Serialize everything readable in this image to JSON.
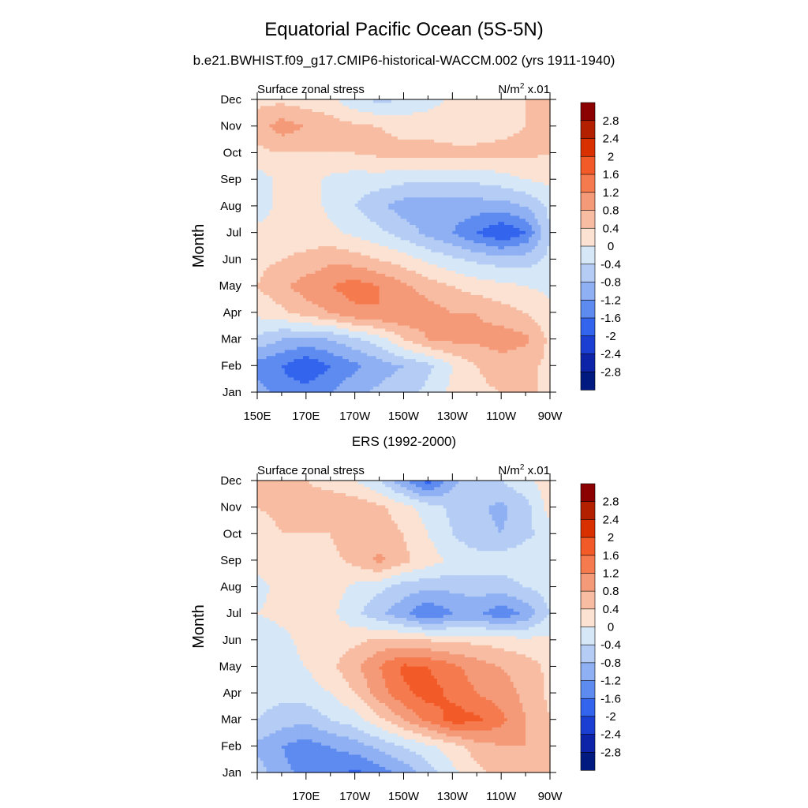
{
  "figure": {
    "title": "Equatorial Pacific Ocean (5S-5N)"
  },
  "colorbar": {
    "levels": [
      "2.8",
      "2.4",
      "2",
      "1.6",
      "1.2",
      "0.8",
      "0.4",
      "0",
      "-0.4",
      "-0.8",
      "-1.2",
      "-1.6",
      "-2",
      "-2.4",
      "-2.8"
    ],
    "colors": [
      "#8b0000",
      "#b22000",
      "#d93000",
      "#f25a28",
      "#f57a4e",
      "#f59a78",
      "#f7bca2",
      "#fbe2d2",
      "#d6e8f8",
      "#b5cdf5",
      "#8fb0f3",
      "#5e8bf0",
      "#3264ee",
      "#1a3fd2",
      "#0d24a8",
      "#001a80"
    ]
  },
  "chart_data": [
    {
      "type": "heatmap",
      "title": "b.e21.BWHIST.f09_g17.CMIP6-historical-WACCM.002 (yrs 1911-1940)",
      "left_label": "Surface zonal stress",
      "right_label_base": "N/m",
      "right_label_sup": "2",
      "right_label_tail": " x.01",
      "ylabel": "Month",
      "x_ticks": [
        "150E",
        "170E",
        "170W",
        "150W",
        "130W",
        "110W",
        "90W"
      ],
      "y_ticks": [
        "Jan",
        "Feb",
        "Mar",
        "Apr",
        "May",
        "Jun",
        "Jul",
        "Aug",
        "Sep",
        "Oct",
        "Nov",
        "Dec"
      ],
      "x_range": [
        "150E",
        "90W"
      ],
      "y_range": [
        "Jan",
        "Dec"
      ],
      "levels": [
        -2.8,
        -2.4,
        -2.0,
        -1.6,
        -1.2,
        -0.8,
        -0.4,
        0,
        0.4,
        0.8,
        1.2,
        1.6,
        2.0,
        2.4,
        2.8
      ],
      "grid_lon": [
        "150E",
        "160E",
        "170E",
        "180",
        "170W",
        "160W",
        "150W",
        "140W",
        "130W",
        "120W",
        "110W",
        "100W",
        "90W"
      ],
      "grid_month": [
        "Jan",
        "Feb",
        "Mar",
        "Apr",
        "May",
        "Jun",
        "Jul",
        "Aug",
        "Sep",
        "Oct",
        "Nov",
        "Dec"
      ],
      "values": [
        [
          -1.0,
          -1.4,
          -1.4,
          -1.2,
          -0.9,
          -0.7,
          -0.5,
          -0.3,
          0.1,
          0.3,
          0.4,
          0.5,
          0.3
        ],
        [
          -1.4,
          -1.6,
          -2.0,
          -1.6,
          -1.3,
          -1.0,
          -0.8,
          -0.5,
          0.0,
          0.4,
          0.6,
          0.5,
          0.3
        ],
        [
          -0.5,
          -0.8,
          -0.9,
          -0.8,
          -0.5,
          -0.2,
          0.4,
          0.8,
          0.9,
          0.9,
          1.0,
          0.9,
          0.3
        ],
        [
          0.1,
          0.3,
          0.6,
          0.8,
          1.1,
          1.2,
          1.2,
          1.0,
          0.8,
          0.8,
          0.6,
          0.4,
          0.1
        ],
        [
          0.4,
          0.7,
          1.0,
          1.2,
          1.4,
          1.2,
          0.9,
          0.6,
          0.4,
          0.2,
          0.1,
          0.0,
          -0.1
        ],
        [
          0.3,
          0.4,
          0.5,
          0.7,
          0.6,
          0.4,
          0.2,
          -0.1,
          -0.3,
          -0.5,
          -0.6,
          -0.6,
          -0.3
        ],
        [
          0.1,
          0.2,
          0.2,
          0.1,
          -0.1,
          -0.3,
          -0.6,
          -0.9,
          -1.2,
          -1.6,
          -2.0,
          -1.6,
          -0.4
        ],
        [
          -0.2,
          0.1,
          0.2,
          -0.1,
          -0.4,
          -0.7,
          -1.0,
          -1.0,
          -1.0,
          -1.0,
          -1.0,
          -0.8,
          -0.3
        ],
        [
          -0.2,
          0.1,
          0.2,
          -0.1,
          -0.2,
          -0.2,
          -0.3,
          -0.3,
          -0.3,
          -0.3,
          -0.2,
          0.0,
          0.1
        ],
        [
          0.3,
          0.4,
          0.4,
          0.4,
          0.4,
          0.5,
          0.5,
          0.5,
          0.5,
          0.5,
          0.5,
          0.5,
          0.4
        ],
        [
          0.6,
          1.0,
          0.8,
          0.6,
          0.5,
          0.4,
          0.3,
          0.3,
          0.2,
          0.2,
          0.3,
          0.4,
          0.5
        ],
        [
          0.3,
          0.3,
          0.2,
          0.1,
          -0.3,
          -0.5,
          -0.4,
          -0.2,
          0.1,
          0.2,
          0.3,
          0.4,
          0.4
        ]
      ]
    },
    {
      "type": "heatmap",
      "title": "ERS (1992-2000)",
      "left_label": "Surface zonal stress",
      "right_label_base": "N/m",
      "right_label_sup": "2",
      "right_label_tail": " x.01",
      "ylabel": "Month",
      "x_ticks": [
        "170E",
        "170W",
        "150W",
        "130W",
        "110W",
        "90W"
      ],
      "y_ticks": [
        "Jan",
        "Feb",
        "Mar",
        "Apr",
        "May",
        "Jun",
        "Jul",
        "Aug",
        "Sep",
        "Oct",
        "Nov",
        "Dec"
      ],
      "x_range": [
        "150E",
        "90W"
      ],
      "y_range": [
        "Jan",
        "Dec"
      ],
      "levels": [
        -2.8,
        -2.4,
        -2.0,
        -1.6,
        -1.2,
        -0.8,
        -0.4,
        0,
        0.4,
        0.8,
        1.2,
        1.6,
        2.0,
        2.4,
        2.8
      ],
      "grid_lon": [
        "150E",
        "160E",
        "170E",
        "180",
        "170W",
        "160W",
        "150W",
        "140W",
        "130W",
        "120W",
        "110W",
        "100W",
        "90W"
      ],
      "grid_month": [
        "Jan",
        "Feb",
        "Mar",
        "Apr",
        "May",
        "Jun",
        "Jul",
        "Aug",
        "Sep",
        "Oct",
        "Nov",
        "Dec"
      ],
      "values": [
        [
          -0.6,
          -1.1,
          -1.3,
          -1.4,
          -1.7,
          -1.4,
          -1.1,
          -0.6,
          -0.1,
          0.3,
          0.5,
          0.6,
          0.4
        ],
        [
          -0.9,
          -1.2,
          -1.4,
          -1.2,
          -1.0,
          -0.7,
          -0.4,
          -0.1,
          0.2,
          0.6,
          0.8,
          0.8,
          0.5
        ],
        [
          -0.4,
          -0.6,
          -0.7,
          -0.4,
          -0.2,
          0.3,
          0.8,
          1.3,
          1.8,
          1.7,
          1.3,
          0.8,
          0.4
        ],
        [
          -0.2,
          -0.3,
          -0.2,
          0.0,
          0.4,
          1.0,
          1.5,
          1.8,
          1.5,
          1.2,
          1.0,
          0.7,
          0.3
        ],
        [
          -0.1,
          -0.1,
          0.0,
          0.3,
          0.7,
          1.2,
          1.7,
          1.6,
          1.3,
          1.0,
          0.8,
          0.6,
          0.3
        ],
        [
          -0.3,
          -0.1,
          0.1,
          0.2,
          0.3,
          0.5,
          0.5,
          0.4,
          0.3,
          0.3,
          0.2,
          0.1,
          0.1
        ],
        [
          0.0,
          0.1,
          0.2,
          0.1,
          -0.3,
          -0.7,
          -1.1,
          -1.6,
          -1.2,
          -1.1,
          -1.5,
          -1.1,
          -0.4
        ],
        [
          -0.1,
          0.1,
          0.3,
          0.2,
          -0.1,
          -0.3,
          -0.6,
          -0.7,
          -0.7,
          -0.6,
          -0.6,
          -0.4,
          -0.2
        ],
        [
          0.1,
          0.3,
          0.4,
          0.3,
          0.5,
          0.9,
          0.5,
          0.2,
          -0.1,
          -0.2,
          -0.2,
          -0.1,
          0.0
        ],
        [
          0.2,
          0.4,
          0.4,
          0.4,
          0.6,
          0.6,
          0.4,
          0.0,
          -0.4,
          -0.7,
          -0.8,
          -0.5,
          -0.2
        ],
        [
          0.4,
          0.5,
          0.5,
          0.6,
          0.7,
          0.5,
          0.2,
          -0.2,
          -0.5,
          -0.7,
          -0.9,
          -0.6,
          0.2
        ],
        [
          0.4,
          0.6,
          0.4,
          0.3,
          0.0,
          -0.4,
          -1.1,
          -1.8,
          -0.9,
          -0.6,
          -0.4,
          -0.1,
          0.2
        ]
      ]
    }
  ]
}
